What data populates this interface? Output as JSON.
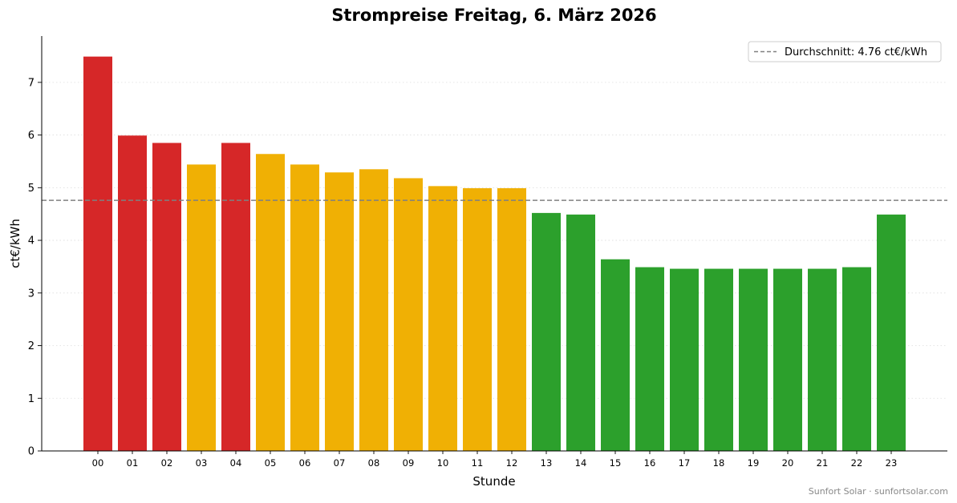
{
  "chart_data": {
    "type": "bar",
    "title": "Strompreise Freitag, 6. März 2026",
    "xlabel": "Stunde",
    "ylabel": "ct€/kWh",
    "ylim": [
      0,
      7.88
    ],
    "yticks": [
      "0",
      "1",
      "2",
      "3",
      "4",
      "5",
      "6",
      "7"
    ],
    "grid": "horizontal dotted",
    "categories": [
      "00",
      "01",
      "02",
      "03",
      "04",
      "05",
      "06",
      "07",
      "08",
      "09",
      "10",
      "11",
      "12",
      "13",
      "14",
      "15",
      "16",
      "17",
      "18",
      "19",
      "20",
      "21",
      "22",
      "23"
    ],
    "values": [
      7.49,
      5.99,
      5.85,
      5.44,
      5.85,
      5.64,
      5.44,
      5.29,
      5.35,
      5.18,
      5.03,
      4.99,
      4.99,
      4.52,
      4.49,
      3.64,
      3.49,
      3.46,
      3.46,
      3.46,
      3.46,
      3.46,
      3.49,
      4.49
    ],
    "bar_colors": [
      "red",
      "red",
      "red",
      "amber",
      "red",
      "amber",
      "amber",
      "amber",
      "amber",
      "amber",
      "amber",
      "amber",
      "amber",
      "green",
      "green",
      "green",
      "green",
      "green",
      "green",
      "green",
      "green",
      "green",
      "green",
      "green"
    ],
    "colors": {
      "red": "#d62728",
      "amber": "#f0b004",
      "green": "#2ca02c",
      "average_line": "#808080"
    },
    "average": {
      "value": 4.76,
      "label": "Durchschnitt: 4.76 ct€/kWh"
    },
    "legend_position": "top-right"
  },
  "footer": "Sunfort Solar · sunfortsolar.com"
}
